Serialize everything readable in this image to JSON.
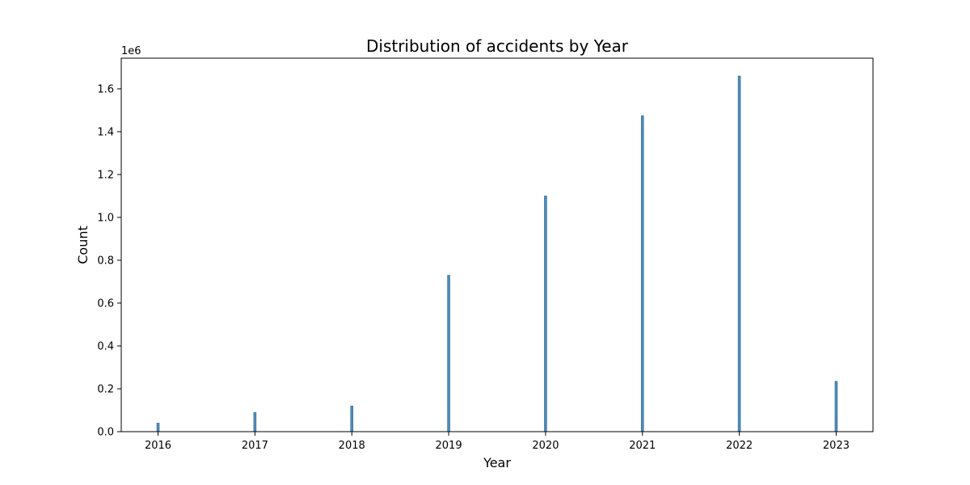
{
  "chart_data": {
    "type": "bar",
    "title": "Distribution of accidents by Year",
    "xlabel": "Year",
    "ylabel": "Count",
    "y_offset_label": "1e6",
    "categories": [
      "2016",
      "2017",
      "2018",
      "2019",
      "2020",
      "2021",
      "2022",
      "2023"
    ],
    "x": [
      2016,
      2017,
      2018,
      2019,
      2020,
      2021,
      2022,
      2023
    ],
    "values": [
      40000,
      90000,
      120000,
      730000,
      1100000,
      1475000,
      1660000,
      235000
    ],
    "xlim": [
      2015.62,
      2023.38
    ],
    "ylim": [
      0,
      1743000
    ],
    "x_ticks": [
      2016,
      2017,
      2018,
      2019,
      2020,
      2021,
      2022,
      2023
    ],
    "x_tick_labels": [
      "2016",
      "2017",
      "2018",
      "2019",
      "2020",
      "2021",
      "2022",
      "2023"
    ],
    "y_ticks": [
      0,
      200000,
      400000,
      600000,
      800000,
      1000000,
      1200000,
      1400000,
      1600000
    ],
    "y_tick_labels": [
      "0.0",
      "0.2",
      "0.4",
      "0.6",
      "0.8",
      "1.0",
      "1.2",
      "1.4",
      "1.6"
    ],
    "grid": false,
    "legend": "none",
    "bar_color": "#4c8cb9",
    "bar_edge_color": "#3a6e96"
  }
}
